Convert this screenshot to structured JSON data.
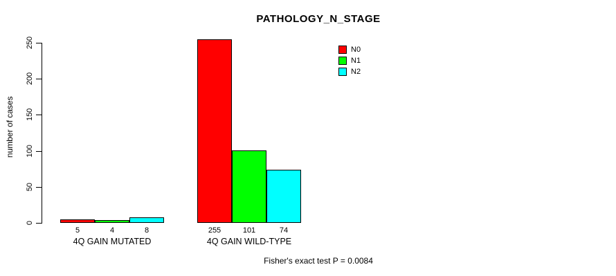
{
  "chart_data": {
    "type": "bar",
    "title": "PATHOLOGY_N_STAGE",
    "xlabel": "",
    "ylabel": "number of cases",
    "categories": [
      "4Q GAIN MUTATED",
      "4Q GAIN WILD-TYPE"
    ],
    "series": [
      {
        "name": "N0",
        "color": "#FF0000",
        "values": [
          5,
          255
        ]
      },
      {
        "name": "N1",
        "color": "#00FF00",
        "values": [
          4,
          101
        ]
      },
      {
        "name": "N2",
        "color": "#00FFFF",
        "values": [
          8,
          74
        ]
      }
    ],
    "bar_value_labels": [
      [
        "5",
        "4",
        "8"
      ],
      [
        "255",
        "101",
        "74"
      ]
    ],
    "yticks": [
      0,
      50,
      100,
      150,
      200,
      250
    ],
    "ylim": [
      0,
      250
    ],
    "grid": false,
    "legend_position": "top-right",
    "annotation": "Fisher's exact test P = 0.0084"
  }
}
